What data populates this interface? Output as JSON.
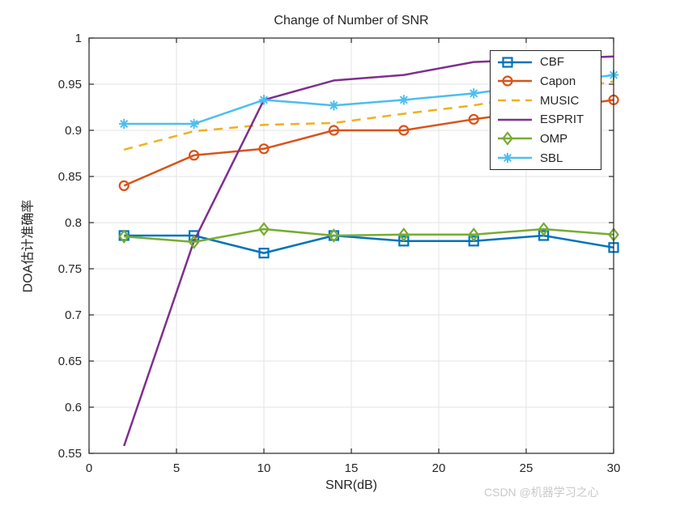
{
  "figure": {
    "watermark": "CSDN @机器学习之心"
  },
  "chart_data": {
    "type": "line",
    "title": "Change of Number of SNR",
    "xlabel": "SNR(dB)",
    "ylabel": "DOA估计准确率",
    "xlim": [
      0,
      30
    ],
    "ylim": [
      0.55,
      1.0
    ],
    "grid": true,
    "legend_position": "top-right",
    "x_ticks": [
      0,
      5,
      10,
      15,
      20,
      25,
      30
    ],
    "x_tick_labels": [
      "0",
      "5",
      "10",
      "15",
      "20",
      "25",
      "30"
    ],
    "y_ticks": [
      0.55,
      0.6,
      0.65,
      0.7,
      0.75,
      0.8,
      0.85,
      0.9,
      0.95,
      1
    ],
    "y_tick_labels": [
      "0.55",
      "0.6",
      "0.65",
      "0.7",
      "0.75",
      "0.8",
      "0.85",
      "0.9",
      "0.95",
      "1"
    ],
    "x": [
      2,
      6,
      10,
      14,
      18,
      22,
      26,
      30
    ],
    "series": [
      {
        "name": "CBF",
        "color": "#0072BD",
        "line": "solid",
        "marker": "square",
        "values": [
          0.786,
          0.786,
          0.767,
          0.786,
          0.78,
          0.78,
          0.786,
          0.773
        ]
      },
      {
        "name": "Capon",
        "color": "#D95319",
        "line": "solid",
        "marker": "circle",
        "values": [
          0.84,
          0.873,
          0.88,
          0.9,
          0.9,
          0.912,
          0.922,
          0.933
        ]
      },
      {
        "name": "MUSIC",
        "color": "#EDB120",
        "line": "dashed",
        "marker": "none",
        "values": [
          0.879,
          0.899,
          0.906,
          0.908,
          0.918,
          0.927,
          0.94,
          0.953
        ]
      },
      {
        "name": "ESPRIT",
        "color": "#7E2F8E",
        "line": "solid",
        "marker": "none",
        "values": [
          0.558,
          0.78,
          0.933,
          0.954,
          0.96,
          0.974,
          0.977,
          0.98
        ]
      },
      {
        "name": "OMP",
        "color": "#77AC30",
        "line": "solid",
        "marker": "diamond",
        "values": [
          0.785,
          0.779,
          0.793,
          0.786,
          0.787,
          0.787,
          0.793,
          0.787
        ]
      },
      {
        "name": "SBL",
        "color": "#4DBEEE",
        "line": "solid",
        "marker": "asterisk",
        "values": [
          0.907,
          0.907,
          0.933,
          0.927,
          0.933,
          0.94,
          0.95,
          0.96
        ]
      }
    ]
  }
}
